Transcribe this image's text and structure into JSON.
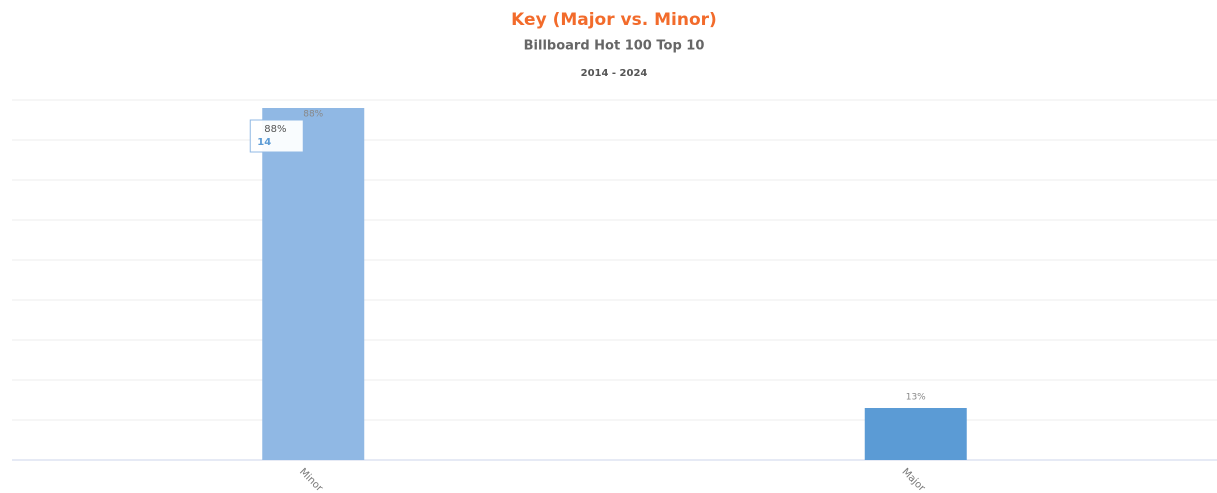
{
  "chart_data": {
    "type": "bar",
    "title": "Key (Major vs. Minor)",
    "subtitle": "Billboard Hot 100 Top 10",
    "period": "2014 - 2024",
    "categories": [
      "Minor",
      "Major"
    ],
    "values": [
      88,
      13
    ],
    "value_labels": [
      "88%",
      "13%"
    ],
    "colors": [
      "#90b8e4",
      "#5b9bd5"
    ],
    "ylim": [
      0,
      90
    ],
    "yticks": [
      0,
      10,
      20,
      30,
      40,
      50,
      60,
      70,
      80,
      90
    ],
    "grid": true,
    "tooltip": {
      "value_label": "88%",
      "count": 14
    }
  }
}
